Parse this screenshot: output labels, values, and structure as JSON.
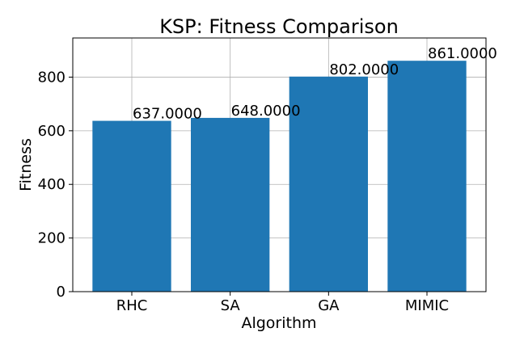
{
  "chart_data": {
    "type": "bar",
    "title": "KSP: Fitness Comparison",
    "xlabel": "Algorithm",
    "ylabel": "Fitness",
    "categories": [
      "RHC",
      "SA",
      "GA",
      "MIMIC"
    ],
    "values": [
      637,
      648,
      802,
      861
    ],
    "value_labels": [
      "637.0000",
      "648.0000",
      "802.0000",
      "861.0000"
    ],
    "yticks": [
      0,
      200,
      400,
      600,
      800
    ],
    "ylim": [
      0,
      946
    ],
    "grid": true,
    "bar_color": "#1f77b4"
  }
}
